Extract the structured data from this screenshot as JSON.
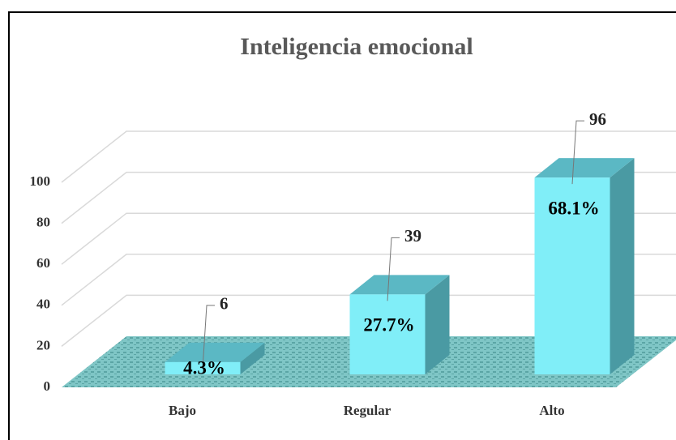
{
  "chart_data": {
    "type": "bar3d",
    "title": "Inteligencia emocional",
    "categories": [
      "Bajo",
      "Regular",
      "Alto"
    ],
    "values": [
      6,
      39,
      96
    ],
    "percentages": [
      4.3,
      27.7,
      68.1
    ],
    "percentage_labels": [
      "4.3%",
      "27.7%",
      "68.1%"
    ],
    "color": "#80eef8",
    "ylim": [
      0,
      100
    ],
    "yticks": [
      0,
      20,
      40,
      60,
      80,
      100
    ],
    "grid": true
  }
}
